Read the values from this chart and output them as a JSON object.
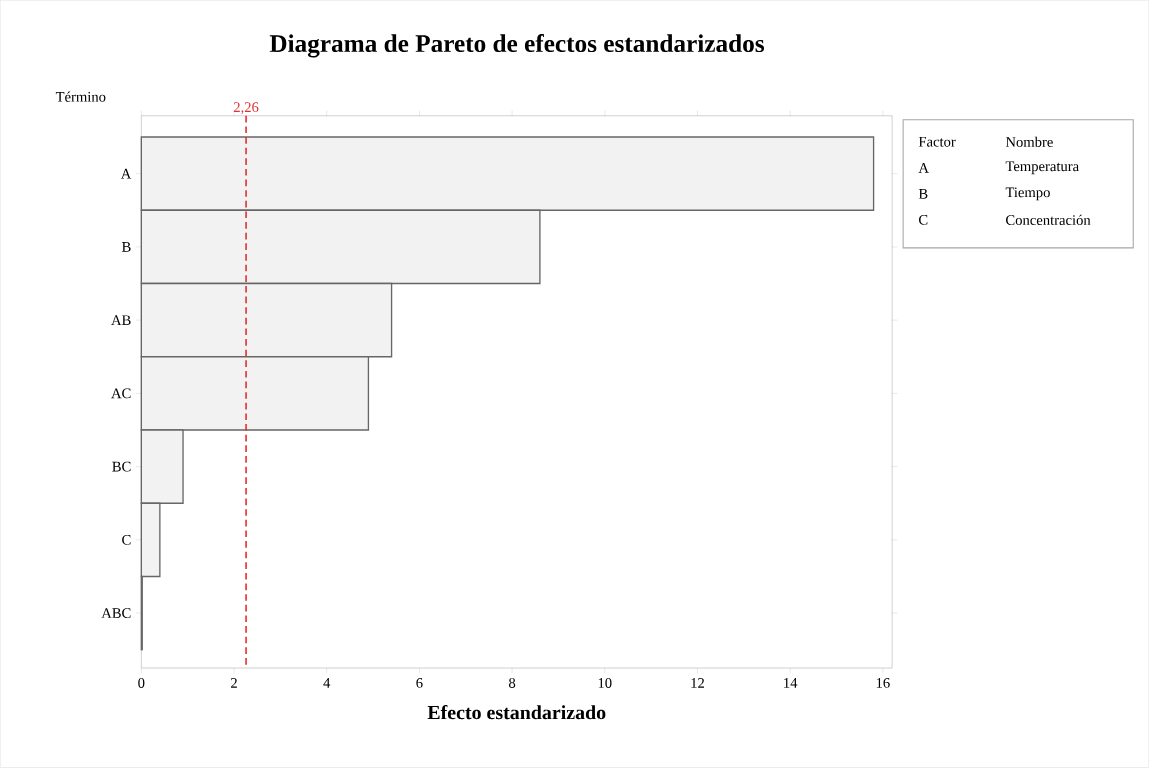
{
  "chart_data": {
    "type": "bar",
    "orientation": "horizontal",
    "title": "Diagrama de Pareto de efectos estandarizados",
    "xlabel": "Efecto estandarizado",
    "ylabel": "Término",
    "categories": [
      "A",
      "B",
      "AB",
      "AC",
      "BC",
      "C",
      "ABC"
    ],
    "values": [
      15.8,
      8.6,
      5.4,
      4.9,
      0.9,
      0.4,
      0.02
    ],
    "color": "#f2f2f2",
    "xlim": [
      0,
      16.2
    ],
    "xticks": [
      0,
      2,
      4,
      6,
      8,
      10,
      12,
      14,
      16
    ],
    "ref_lines": [
      {
        "axis": "x",
        "value": 2.26,
        "label": "2,26",
        "color": "#e03030",
        "line_style": "dashed"
      }
    ],
    "annotations": [
      "Factor",
      "Nombre",
      "A",
      "Temperatura",
      "B",
      "Tiempo",
      "C",
      "Concentración"
    ],
    "grid": false
  }
}
